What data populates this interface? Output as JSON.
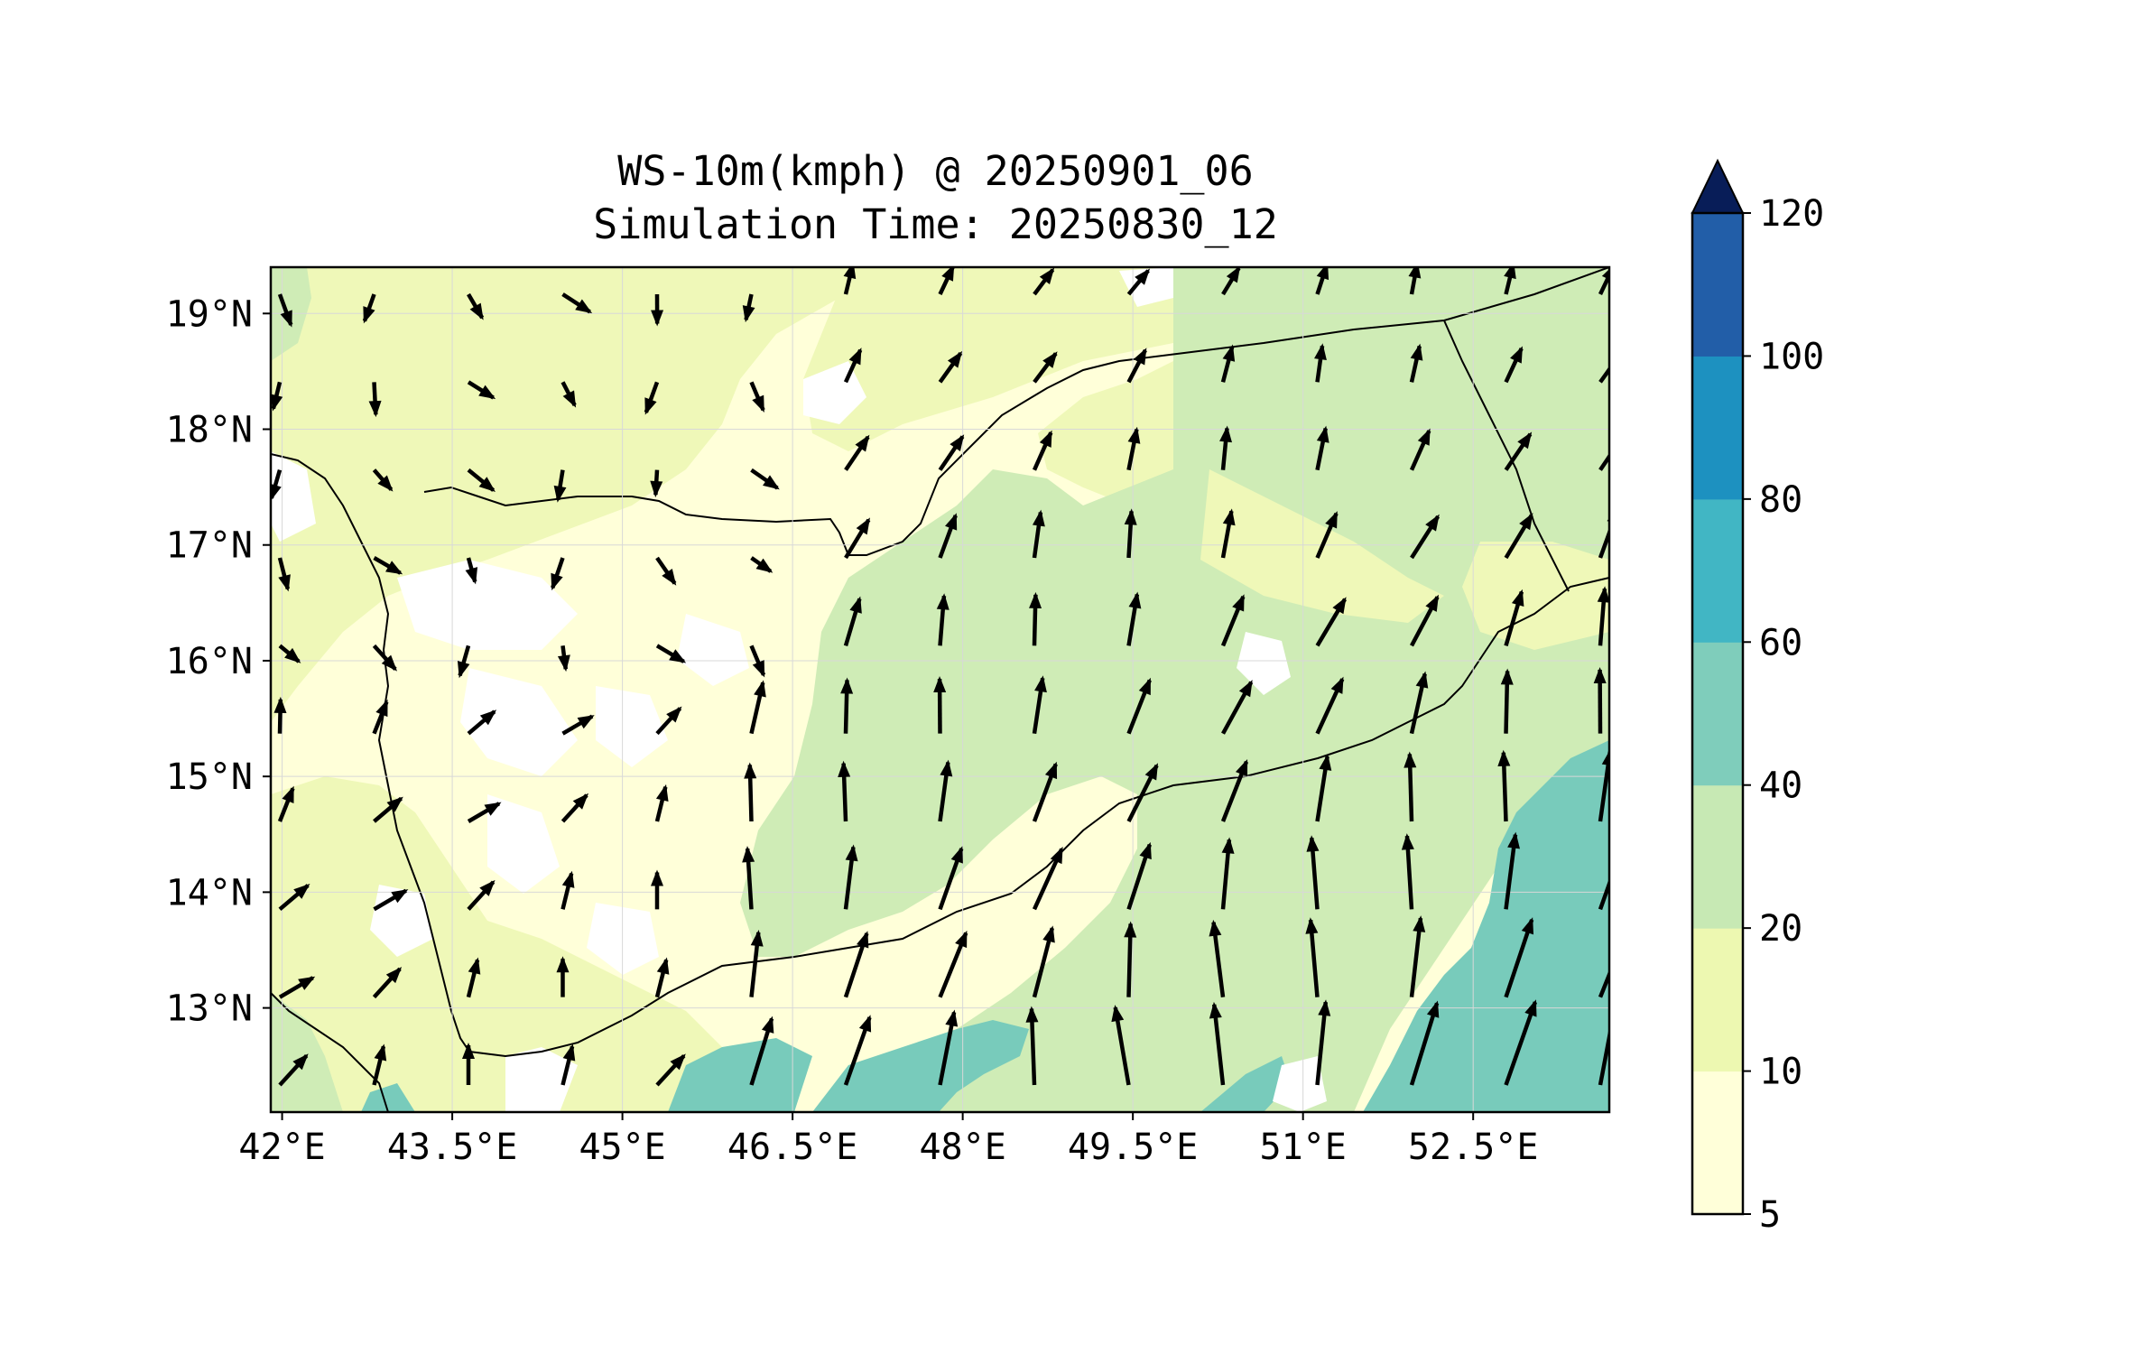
{
  "title": {
    "line1": "WS-10m(kmph) @ 20250901_06",
    "line2": "Simulation Time: 20250830_12"
  },
  "map": {
    "x_axis": {
      "ticks": [
        "42°E",
        "43.5°E",
        "45°E",
        "46.5°E",
        "48°E",
        "49.5°E",
        "51°E",
        "52.5°E"
      ]
    },
    "y_axis": {
      "ticks": [
        "19°N",
        "18°N",
        "17°N",
        "16°N",
        "15°N",
        "14°N",
        "13°N"
      ]
    },
    "lon_range": [
      41.9,
      53.7
    ],
    "lat_range": [
      12.1,
      19.4
    ],
    "grid": true,
    "wind_vectors": "present"
  },
  "colorbar": {
    "levels": [
      "5",
      "10",
      "20",
      "40",
      "60",
      "80",
      "100",
      "120"
    ],
    "colors": [
      "#ffffd9",
      "#edf8b1",
      "#c7e9b4",
      "#7fcdbb",
      "#41b6c4",
      "#1d91c0",
      "#225ea8",
      "#0c2c84"
    ],
    "extend": "max",
    "extend_color": "#081d58"
  },
  "fill_colors": {
    "lt5": "#ffffff",
    "b5_10": "#ffffd9",
    "b10_20": "#eff8b8",
    "b20_40": "#cfecb6",
    "b40_60": "#78cbbb",
    "border": "#000000"
  }
}
